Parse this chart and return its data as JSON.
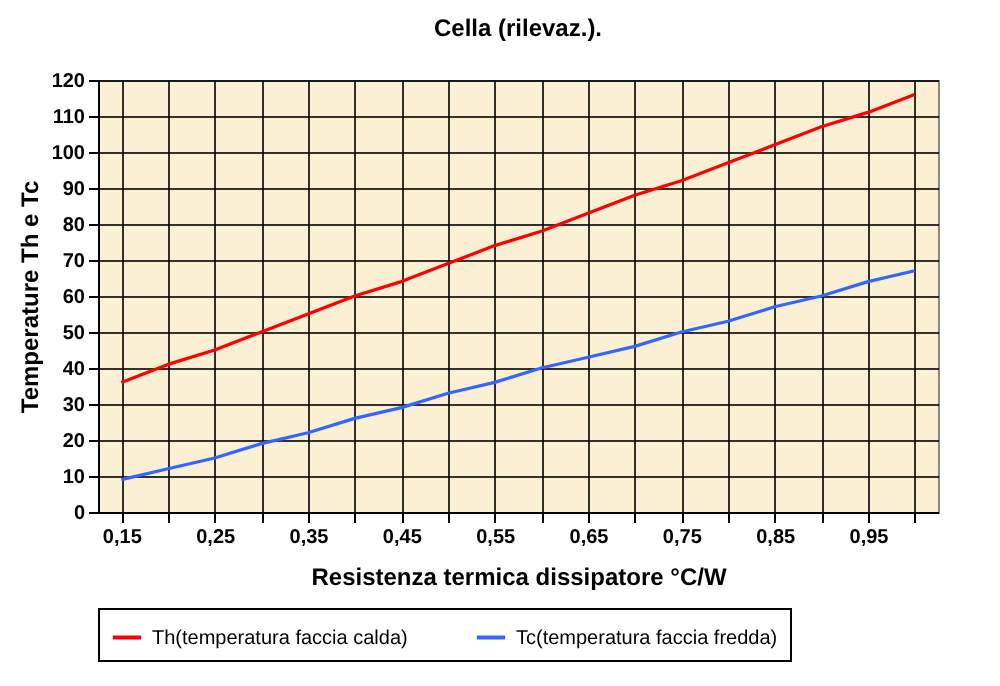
{
  "chart_data": {
    "type": "line",
    "title": "Cella (rilevaz.).",
    "xlabel": "Resistenza termica dissipatore °C/W",
    "ylabel": "Temperature Th e Tc",
    "categories": [
      "0,15",
      null,
      "0,25",
      null,
      "0,35",
      null,
      "0,45",
      null,
      "0,55",
      null,
      "0,65",
      null,
      "0,75",
      null,
      "0,85",
      null,
      "0,95",
      null
    ],
    "series": [
      {
        "name": "Th(temperatura faccia calda)",
        "color": "#ff0000",
        "values": [
          36,
          41,
          45,
          50,
          55,
          60,
          64,
          69,
          74,
          78,
          83,
          88,
          92,
          97,
          102,
          107,
          111,
          116
        ]
      },
      {
        "name": "Tc(temperatura faccia fredda)",
        "color": "#3366ff",
        "values": [
          9,
          12,
          15,
          19,
          22,
          26,
          29,
          33,
          36,
          40,
          43,
          46,
          50,
          53,
          57,
          60,
          64,
          67
        ]
      }
    ],
    "ylim": [
      0,
      120
    ],
    "yticks": [
      0,
      10,
      20,
      30,
      40,
      50,
      60,
      70,
      80,
      90,
      100,
      110,
      120
    ],
    "grid": true,
    "legend": "bottom",
    "marker": "none",
    "line_style": "solid"
  }
}
